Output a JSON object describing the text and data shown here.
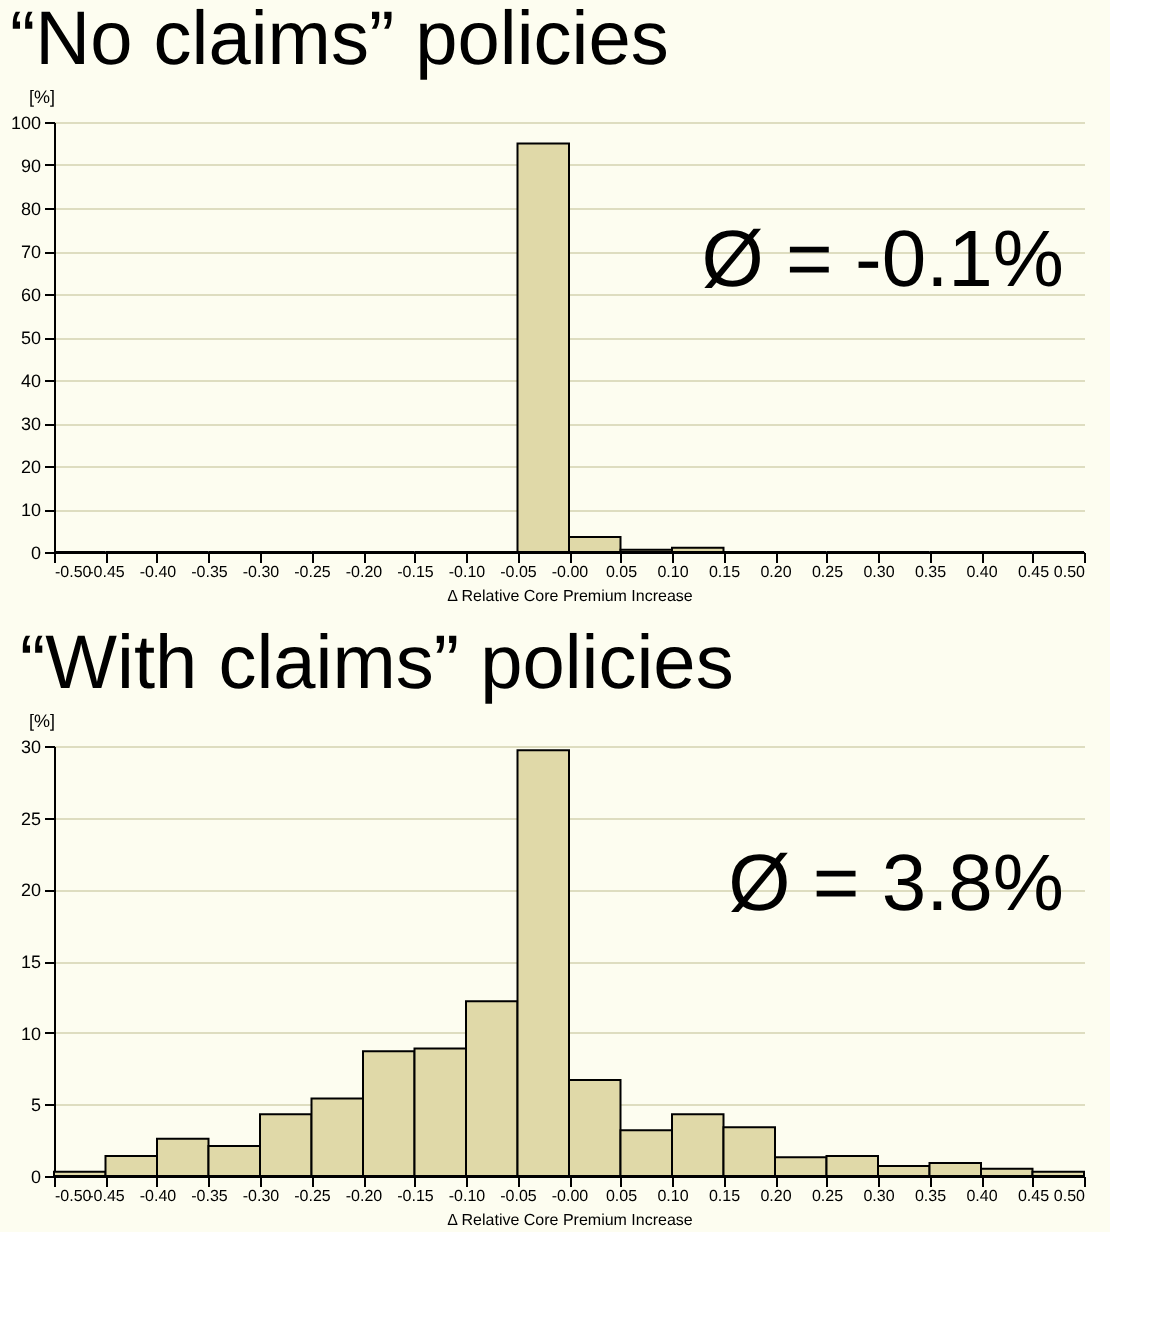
{
  "chart_data": [
    {
      "type": "histogram",
      "title": "“No claims” policies",
      "xlabel": "Δ Relative Core Premium Increase",
      "ylabel": "[%]",
      "annotations": [
        "Ø = -0.1%"
      ],
      "bins": [
        -0.5,
        -0.45,
        -0.4,
        -0.35,
        -0.3,
        -0.25,
        -0.2,
        -0.15,
        -0.1,
        -0.05,
        0,
        0.05,
        0.1,
        0.15,
        0.2,
        0.25,
        0.3,
        0.35,
        0.4,
        0.45,
        0.5
      ],
      "values": [
        0,
        0,
        0,
        0,
        0,
        0,
        0,
        0,
        0,
        95,
        3.5,
        0.5,
        1,
        0,
        0,
        0,
        0,
        0,
        0,
        0
      ],
      "color": "#e0d9a8",
      "xlim": [
        -0.5,
        0.5
      ],
      "xticks": [
        {
          "value": -0.5,
          "label": "-0.50"
        },
        {
          "value": -0.45,
          "label": "-0.45"
        },
        {
          "value": -0.4,
          "label": "-0.40"
        },
        {
          "value": -0.35,
          "label": "-0.35"
        },
        {
          "value": -0.3,
          "label": "-0.30"
        },
        {
          "value": -0.25,
          "label": "-0.25"
        },
        {
          "value": -0.2,
          "label": "-0.20"
        },
        {
          "value": -0.15,
          "label": "-0.15"
        },
        {
          "value": -0.1,
          "label": "-0.10"
        },
        {
          "value": -0.05,
          "label": "-0.05"
        },
        {
          "value": 0,
          "label": "-0.00"
        },
        {
          "value": 0.05,
          "label": "0.05"
        },
        {
          "value": 0.1,
          "label": "0.10"
        },
        {
          "value": 0.15,
          "label": "0.15"
        },
        {
          "value": 0.2,
          "label": "0.20"
        },
        {
          "value": 0.25,
          "label": "0.25"
        },
        {
          "value": 0.3,
          "label": "0.30"
        },
        {
          "value": 0.35,
          "label": "0.35"
        },
        {
          "value": 0.4,
          "label": "0.40"
        },
        {
          "value": 0.45,
          "label": "0.45"
        },
        {
          "value": 0.5,
          "label": "0.50"
        }
      ],
      "ylim": [
        0,
        100
      ],
      "yticks": [
        0,
        10,
        20,
        30,
        40,
        50,
        60,
        70,
        80,
        90,
        100
      ],
      "grid": "y"
    },
    {
      "type": "histogram",
      "title": "“With claims” policies",
      "xlabel": "Δ Relative Core Premium Increase",
      "ylabel": "[%]",
      "annotations": [
        "Ø = 3.8%"
      ],
      "bins": [
        -0.5,
        -0.45,
        -0.4,
        -0.35,
        -0.3,
        -0.25,
        -0.2,
        -0.15,
        -0.1,
        -0.05,
        0,
        0.05,
        0.1,
        0.15,
        0.2,
        0.25,
        0.3,
        0.35,
        0.4,
        0.45,
        0.5
      ],
      "values": [
        0.3,
        1.4,
        2.6,
        2.1,
        4.3,
        5.4,
        8.7,
        8.9,
        12.2,
        29.7,
        6.7,
        3.2,
        4.3,
        3.4,
        1.3,
        1.4,
        0.7,
        0.9,
        0.5,
        0.3
      ],
      "color": "#e0d9a8",
      "xlim": [
        -0.5,
        0.5
      ],
      "xticks": [
        {
          "value": -0.5,
          "label": "-0.50"
        },
        {
          "value": -0.45,
          "label": "-0.45"
        },
        {
          "value": -0.4,
          "label": "-0.40"
        },
        {
          "value": -0.35,
          "label": "-0.35"
        },
        {
          "value": -0.3,
          "label": "-0.30"
        },
        {
          "value": -0.25,
          "label": "-0.25"
        },
        {
          "value": -0.2,
          "label": "-0.20"
        },
        {
          "value": -0.15,
          "label": "-0.15"
        },
        {
          "value": -0.1,
          "label": "-0.10"
        },
        {
          "value": -0.05,
          "label": "-0.05"
        },
        {
          "value": 0,
          "label": "-0.00"
        },
        {
          "value": 0.05,
          "label": "0.05"
        },
        {
          "value": 0.1,
          "label": "0.10"
        },
        {
          "value": 0.15,
          "label": "0.15"
        },
        {
          "value": 0.2,
          "label": "0.20"
        },
        {
          "value": 0.25,
          "label": "0.25"
        },
        {
          "value": 0.3,
          "label": "0.30"
        },
        {
          "value": 0.35,
          "label": "0.35"
        },
        {
          "value": 0.4,
          "label": "0.40"
        },
        {
          "value": 0.45,
          "label": "0.45"
        },
        {
          "value": 0.5,
          "label": "0.50"
        }
      ],
      "ylim": [
        0,
        30
      ],
      "yticks": [
        0,
        5,
        10,
        15,
        20,
        25,
        30
      ],
      "grid": "y"
    }
  ]
}
